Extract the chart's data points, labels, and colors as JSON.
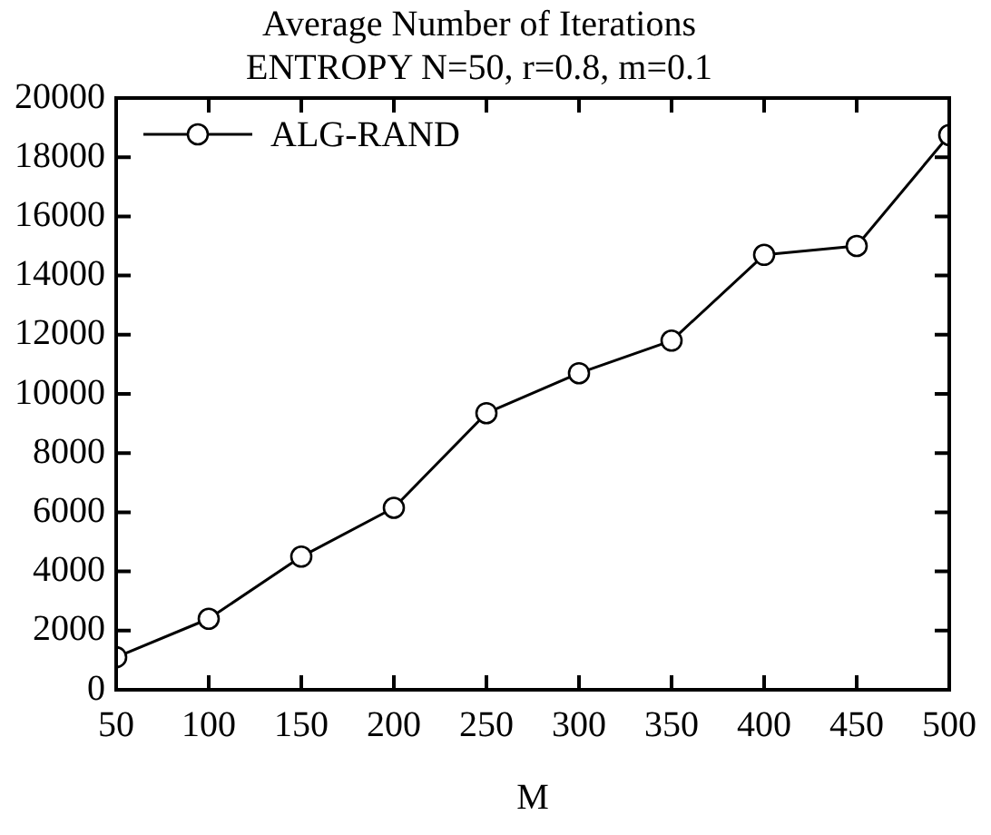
{
  "chart_data": {
    "type": "line",
    "title": "Average Number of Iterations",
    "subtitle": "ENTROPY N=50, r=0.8, m=0.1",
    "xlabel": "M",
    "x": [
      50,
      100,
      150,
      200,
      250,
      300,
      350,
      400,
      450,
      500
    ],
    "series": [
      {
        "name": "ALG-RAND",
        "color": "#000000",
        "values": [
          1100,
          2400,
          4500,
          6150,
          9350,
          10700,
          11800,
          14700,
          15000,
          18750
        ]
      }
    ],
    "xlim": [
      50,
      500
    ],
    "xticks": [
      50,
      100,
      150,
      200,
      250,
      300,
      350,
      400,
      450,
      500
    ],
    "ylim": [
      0,
      20000
    ],
    "yticks": [
      0,
      2000,
      4000,
      6000,
      8000,
      10000,
      12000,
      14000,
      16000,
      18000,
      20000
    ],
    "grid": false,
    "legend": "top left",
    "marker": "circle",
    "line_style": "solid"
  }
}
